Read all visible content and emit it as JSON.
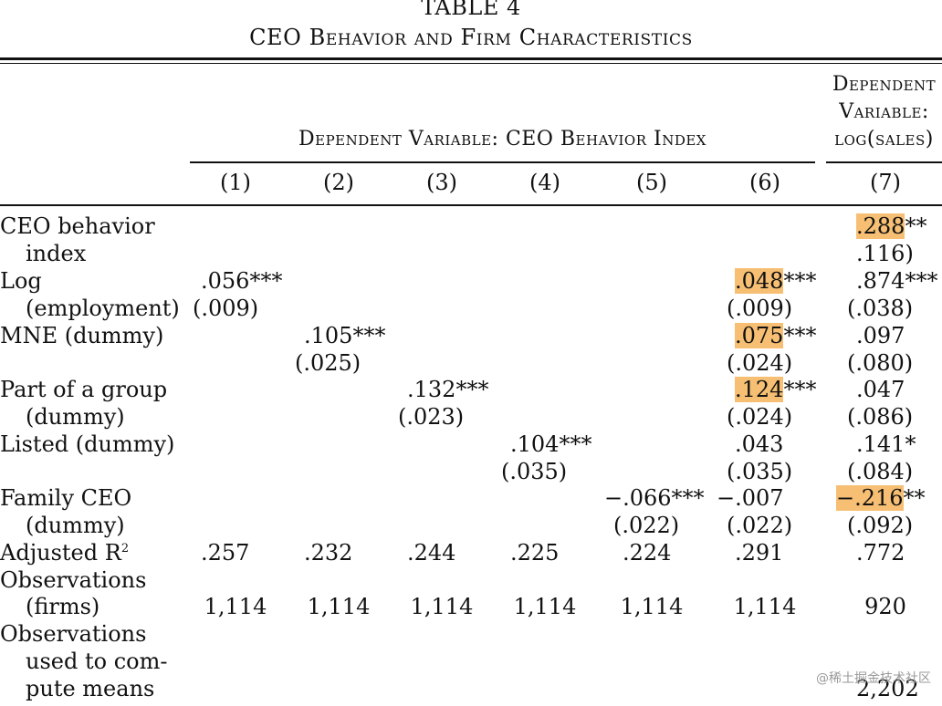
{
  "table": {
    "title": "TABLE 4",
    "subtitle": "CEO Behavior and Firm Characteristics",
    "group1_header": "Dependent Variable: CEO Behavior Index",
    "group2_header_lines": [
      "Dependent",
      "Variable:",
      "log(sales)"
    ],
    "columns": [
      "(1)",
      "(2)",
      "(3)",
      "(4)",
      "(5)",
      "(6)",
      "(7)"
    ],
    "row_labels": {
      "ceo_behavior": [
        "CEO behavior",
        "index"
      ],
      "log_employment": [
        "Log",
        "(employment)"
      ],
      "mne": [
        "MNE (dummy)"
      ],
      "part_group": [
        "Part of a group",
        "(dummy)"
      ],
      "listed": [
        "Listed (dummy)"
      ],
      "family_ceo": [
        "Family CEO",
        "(dummy)"
      ],
      "adj_r2": [
        "Adjusted R"
      ],
      "observations": [
        "Observations",
        "(firms)"
      ],
      "obs_means": [
        "Observations",
        "used to com-",
        "pute means"
      ]
    },
    "cells": {
      "ceo_behavior_c7": ".288",
      "ceo_behavior_c7_stars": "**",
      "ceo_behavior_c7_se": ".116)",
      "log_emp_c1": ".056***",
      "log_emp_c1_se": "(.009)",
      "log_emp_c6": ".048",
      "log_emp_c6_stars": "***",
      "log_emp_c6_se": "(.009)",
      "log_emp_c7": ".874***",
      "log_emp_c7_se": "(.038)",
      "mne_c2": ".105***",
      "mne_c2_se": "(.025)",
      "mne_c6": ".075",
      "mne_c6_stars": "***",
      "mne_c6_se": "(.024)",
      "mne_c7": ".097",
      "mne_c7_se": "(.080)",
      "group_c3": ".132***",
      "group_c3_se": "(.023)",
      "group_c6": ".124",
      "group_c6_stars": "***",
      "group_c6_se": "(.024)",
      "group_c7": ".047",
      "group_c7_se": "(.086)",
      "listed_c4": ".104***",
      "listed_c4_se": "(.035)",
      "listed_c6": ".043",
      "listed_c6_se": "(.035)",
      "listed_c7": ".141*",
      "listed_c7_se": "(.084)",
      "family_c5": "−.066***",
      "family_c5_se": "(.022)",
      "family_c6": "−.007",
      "family_c6_se": "(.022)",
      "family_c7": "−.216",
      "family_c7_stars": "**",
      "family_c7_se": "(.092)",
      "r2": [
        ".257",
        ".232",
        ".244",
        ".225",
        ".224",
        ".291",
        ".772"
      ],
      "obs": [
        "1,114",
        "1,114",
        "1,114",
        "1,114",
        "1,114",
        "1,114",
        "920"
      ],
      "obs_means_c7": "2,202"
    }
  },
  "watermark": "@稀土掘金技术社区",
  "colors": {
    "highlight": "#f6bf73",
    "text": "#111111"
  }
}
